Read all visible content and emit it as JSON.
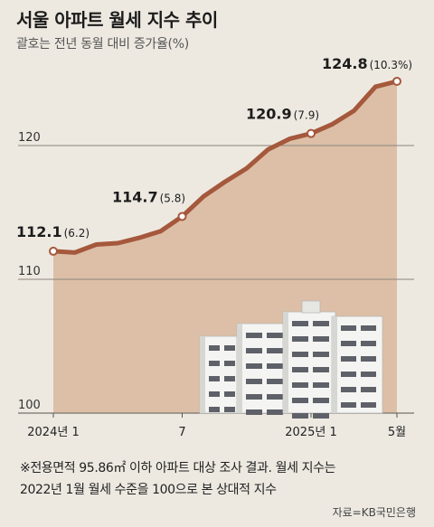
{
  "header": {
    "title": "서울 아파트 월세 지수 추이",
    "subtitle": "괄호는 전년 동월 대비 증가율(%)"
  },
  "chart_data": {
    "type": "area",
    "title": "서울 아파트 월세 지수 추이",
    "subtitle": "괄호는 전년 동월 대비 증가율(%)",
    "ylim": [
      100,
      127
    ],
    "yticks": [
      100,
      110,
      120
    ],
    "grid": "horizontal",
    "x": [
      "2024-01",
      "2024-02",
      "2024-03",
      "2024-04",
      "2024-05",
      "2024-06",
      "2024-07",
      "2024-08",
      "2024-09",
      "2024-10",
      "2024-11",
      "2024-12",
      "2025-01",
      "2025-02",
      "2025-03",
      "2025-04",
      "2025-05"
    ],
    "x_tick_labels": [
      {
        "index": 0,
        "label": "2024년 1"
      },
      {
        "index": 6,
        "label": "7"
      },
      {
        "index": 12,
        "label": "2025년 1"
      },
      {
        "index": 16,
        "label": "5월"
      }
    ],
    "series": [
      {
        "values": [
          112.1,
          112.0,
          112.6,
          112.7,
          113.1,
          113.6,
          114.7,
          116.2,
          117.3,
          118.3,
          119.7,
          120.5,
          120.9,
          121.6,
          122.6,
          124.4,
          124.8
        ]
      }
    ],
    "annotations": [
      {
        "index": 0,
        "value": "112.1",
        "change": "(6.2)"
      },
      {
        "index": 6,
        "value": "114.7",
        "change": "(5.8)"
      },
      {
        "index": 12,
        "value": "120.9",
        "change": "(7.9)"
      },
      {
        "index": 16,
        "value": "124.8",
        "change": "(10.3%)"
      }
    ],
    "colors": {
      "line": "#a5583c",
      "area": "#dcbfa6",
      "background": "#ede9e1"
    }
  },
  "footer": {
    "note_line1": "※전용면적 95.86㎡ 이하 아파트 대상 조사 결과. 월세 지수는",
    "note_line2": "2022년 1월 월세 수준을 100으로 본 상대적 지수",
    "source": "자료=KB국민은행"
  },
  "illustration": {
    "name": "apartment-buildings-illustration"
  }
}
